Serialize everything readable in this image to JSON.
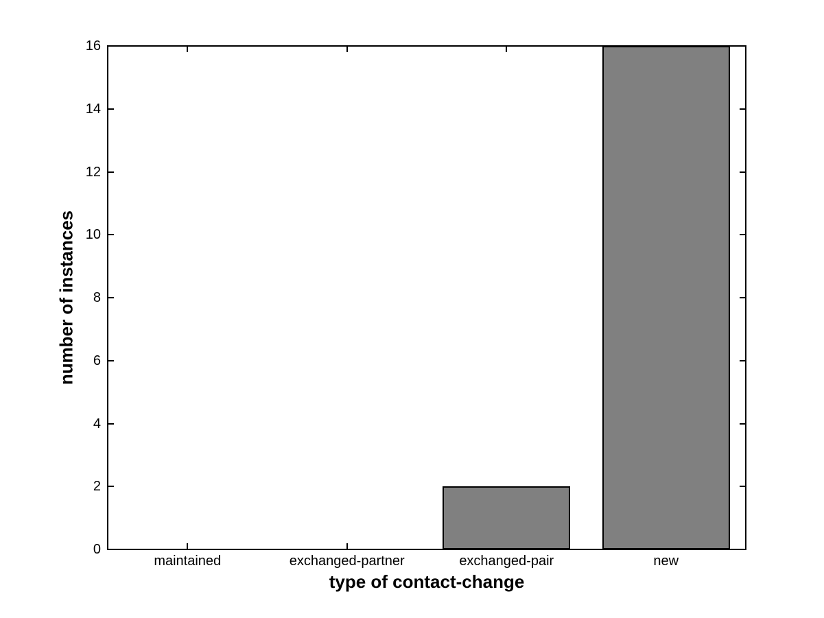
{
  "figure": {
    "background": "#ffffff"
  },
  "chart_data": {
    "type": "bar",
    "title": "",
    "categories": [
      "maintained",
      "exchanged-partner",
      "exchanged-pair",
      "new"
    ],
    "values": [
      0,
      0,
      2,
      16
    ],
    "xlabel": "type of contact-change",
    "ylabel": "number of instances",
    "ylim": [
      0,
      16
    ],
    "yticks": [
      0,
      2,
      4,
      6,
      8,
      10,
      12,
      14,
      16
    ],
    "xlim": [
      0.5,
      4.5
    ],
    "bar_width_fraction": 0.8,
    "grid": false,
    "legend": "none",
    "tick_direction": "in",
    "bar_fill_color": "#808080",
    "bar_edge_color": "#000000",
    "axis_color": "#000000",
    "text_color": "#000000"
  }
}
